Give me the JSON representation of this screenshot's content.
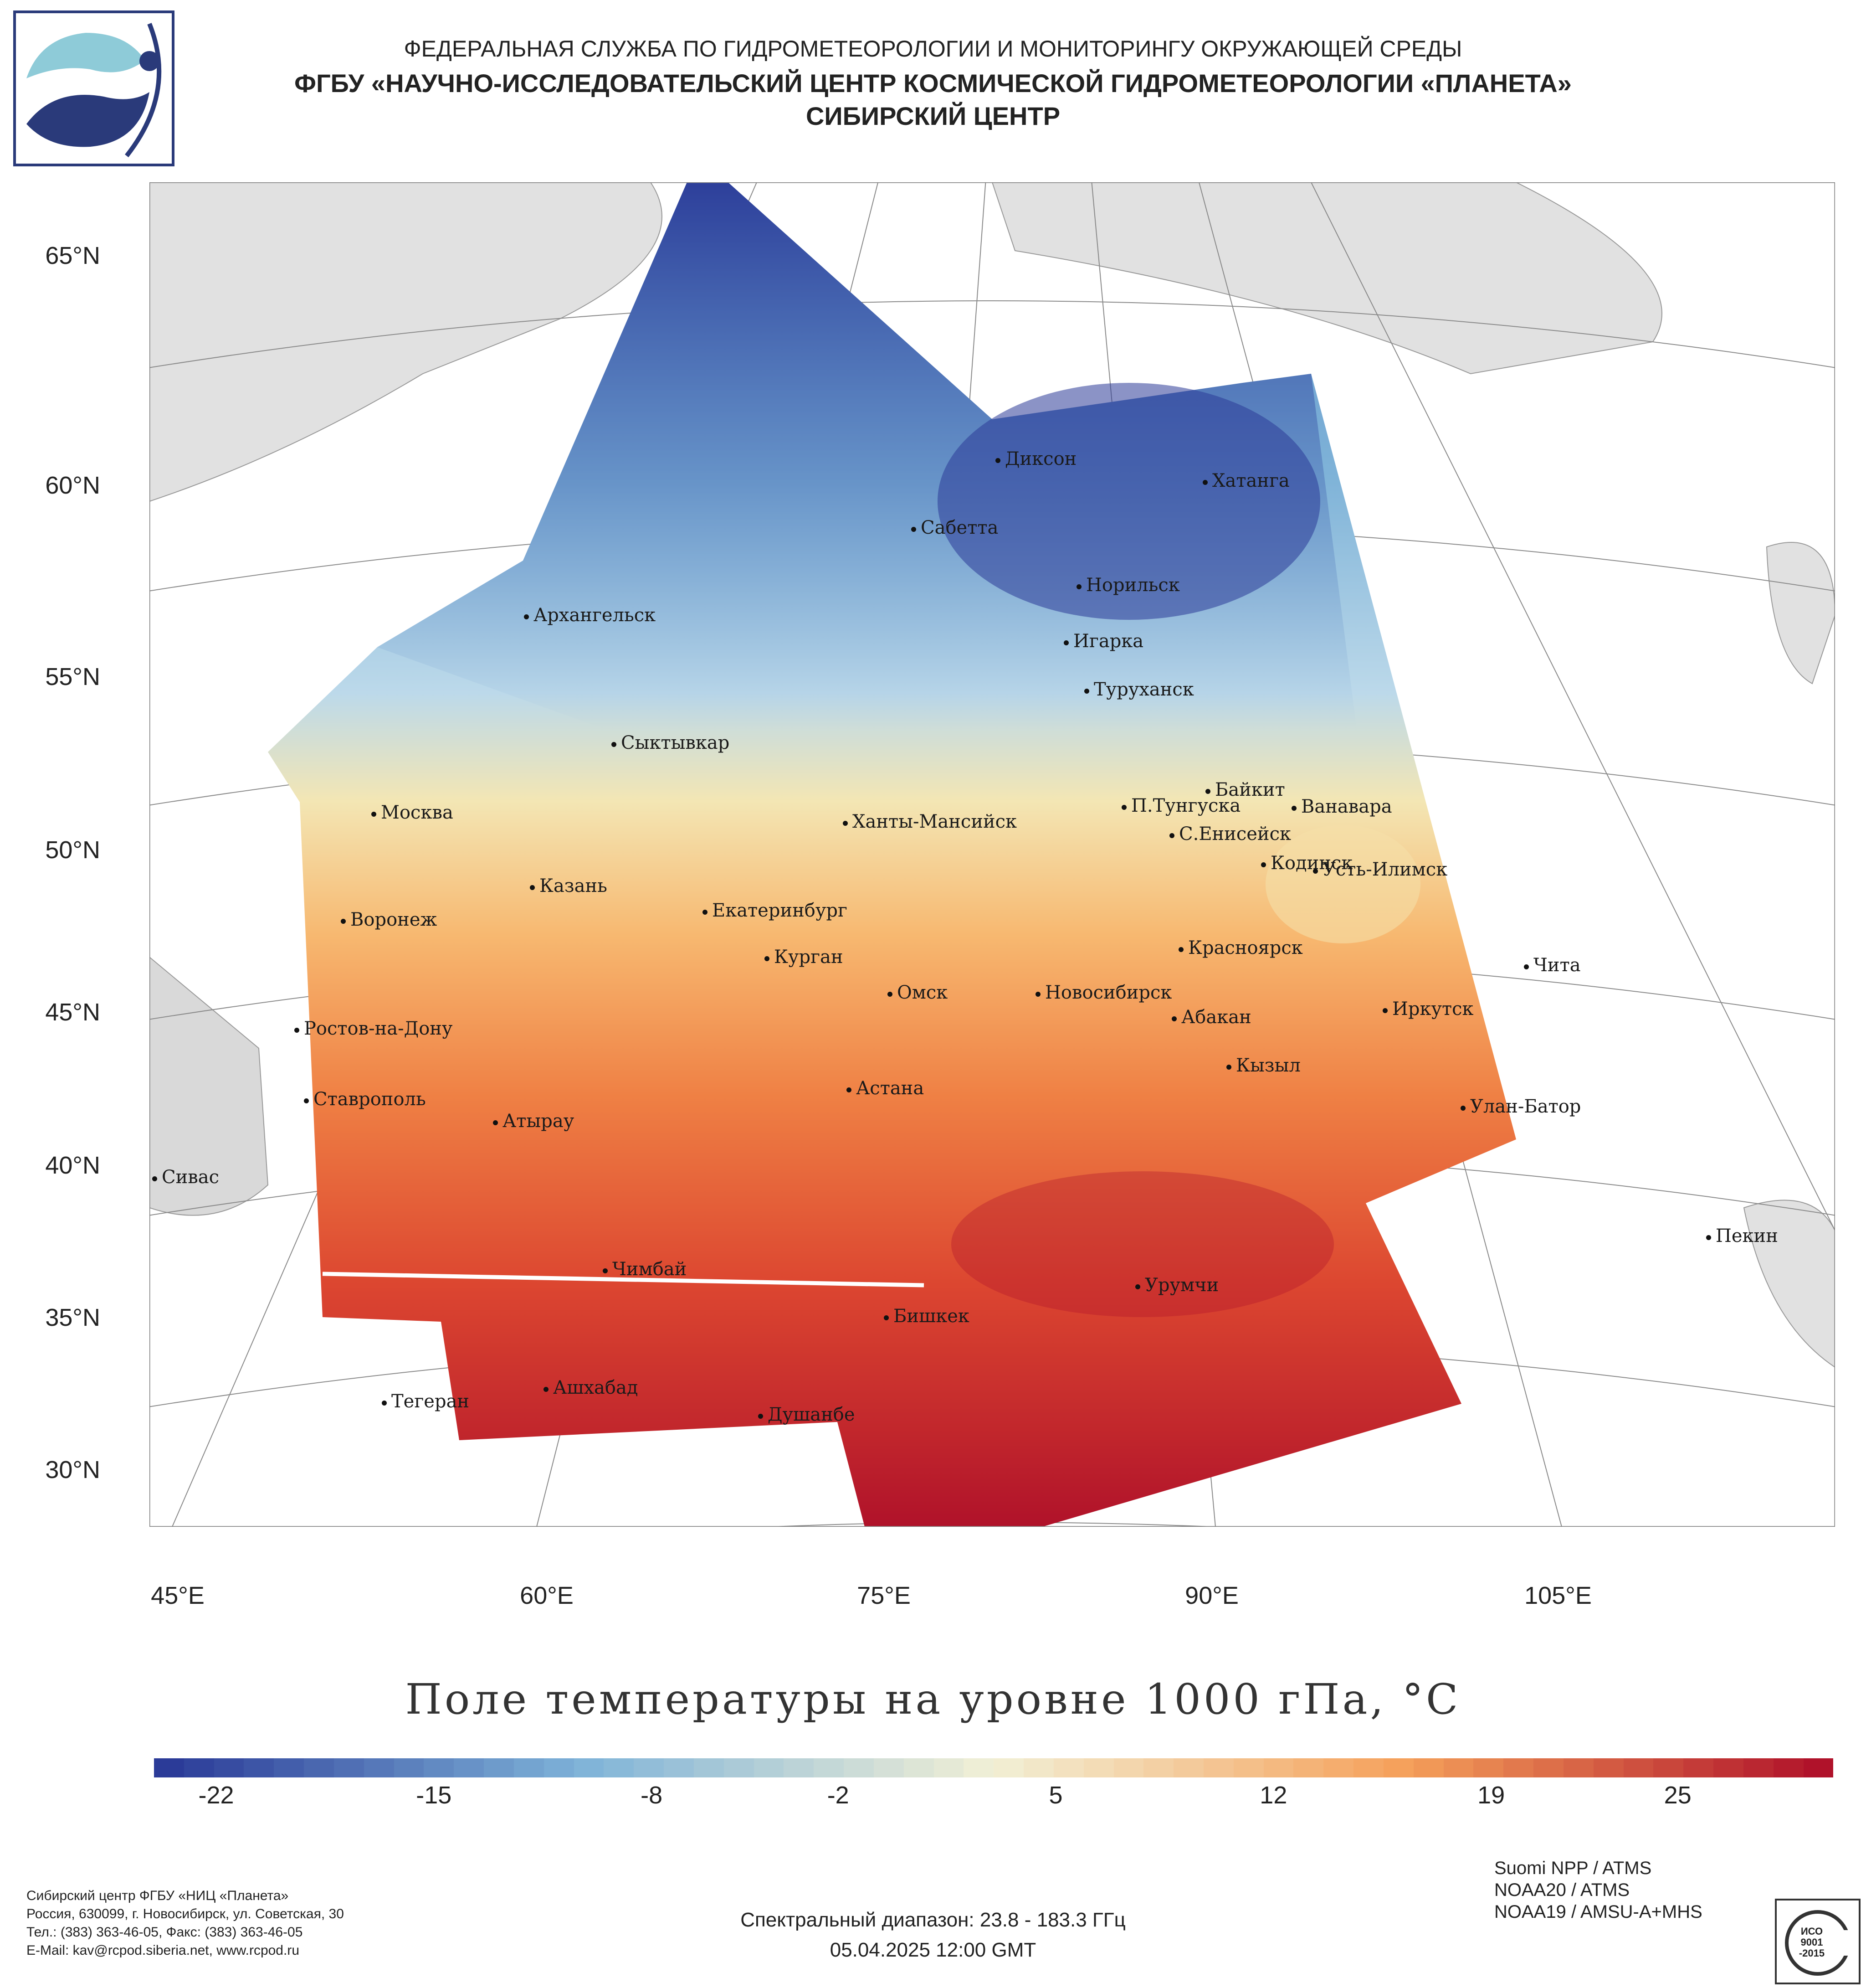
{
  "header": {
    "line1": "ФЕДЕРАЛЬНАЯ СЛУЖБА ПО ГИДРОМЕТЕОРОЛОГИИ И МОНИТОРИНГУ ОКРУЖАЮЩЕЙ СРЕДЫ",
    "line2": "ФГБУ «НАУЧНО-ИССЛЕДОВАТЕЛЬСКИЙ ЦЕНТР КОСМИЧЕСКОЙ ГИДРОМЕТЕОРОЛОГИИ «ПЛАНЕТА»",
    "line3": "СИБИРСКИЙ ЦЕНТР"
  },
  "map": {
    "lat_labels": [
      "65°N",
      "60°N",
      "55°N",
      "50°N",
      "45°N",
      "40°N",
      "35°N",
      "30°N"
    ],
    "lon_labels": [
      "45°E",
      "60°E",
      "75°E",
      "90°E",
      "105°E"
    ],
    "cities": [
      {
        "name": "Диксон"
      },
      {
        "name": "Хатанга"
      },
      {
        "name": "Сабетта"
      },
      {
        "name": "Норильск"
      },
      {
        "name": "Архангельск"
      },
      {
        "name": "Игарка"
      },
      {
        "name": "Туруханск"
      },
      {
        "name": "Сыктывкар"
      },
      {
        "name": "Байкит"
      },
      {
        "name": "Москва"
      },
      {
        "name": "Ханты-Мансийск"
      },
      {
        "name": "П.Тунгуска"
      },
      {
        "name": "Ванавара"
      },
      {
        "name": "С.Енисейск"
      },
      {
        "name": "Казань"
      },
      {
        "name": "Кодинск"
      },
      {
        "name": "Усть-Илимск"
      },
      {
        "name": "Екатеринбург"
      },
      {
        "name": "Воронеж"
      },
      {
        "name": "Курган"
      },
      {
        "name": "Красноярск"
      },
      {
        "name": "Чита"
      },
      {
        "name": "Омск"
      },
      {
        "name": "Новосибирск"
      },
      {
        "name": "Иркутск"
      },
      {
        "name": "Абакан"
      },
      {
        "name": "Ростов-на-Дону"
      },
      {
        "name": "Кызыл"
      },
      {
        "name": "Астана"
      },
      {
        "name": "Ставрополь"
      },
      {
        "name": "Улан-Батор"
      },
      {
        "name": "Атырау"
      },
      {
        "name": "Сивас"
      },
      {
        "name": "Пекин"
      },
      {
        "name": "Чимбай"
      },
      {
        "name": "Урумчи"
      },
      {
        "name": "Бишкек"
      },
      {
        "name": "Ашхабад"
      },
      {
        "name": "Тегеран"
      },
      {
        "name": "Душанбе"
      }
    ]
  },
  "chart_data": {
    "type": "heatmap",
    "title": "Поле температуры на уровне 1000 гПа, °С",
    "colorbar_ticks": [
      "-22",
      "-15",
      "-8",
      "-2",
      "5",
      "12",
      "19",
      "25"
    ],
    "colorbar_range": [
      -24,
      30
    ],
    "colors": {
      "cold": "#2b3b98",
      "cool": "#7fb3d8",
      "neutral": "#f2f0d6",
      "warm": "#f5a05a",
      "hot": "#b0122a"
    }
  },
  "footer": {
    "org_lines": [
      "Сибирский центр ФГБУ «НИЦ «Планета»",
      "Россия, 630099, г. Новосибирск, ул. Советская, 30",
      "Тел.: (383) 363-46-05, Факс: (383) 363-46-05",
      "E-Mail: kav@rcpod.siberia.net, www.rcpod.ru"
    ],
    "spectral": "Спектральный диапазон: 23.8 - 183.3 ГГц",
    "datetime": "05.04.2025 12:00 GMT",
    "satellites": [
      "Suomi NPP / ATMS",
      "NOAA20 / ATMS",
      "NOAA19 / AMSU-A+MHS"
    ],
    "iso_text": "ИСО 9001 -2015"
  }
}
